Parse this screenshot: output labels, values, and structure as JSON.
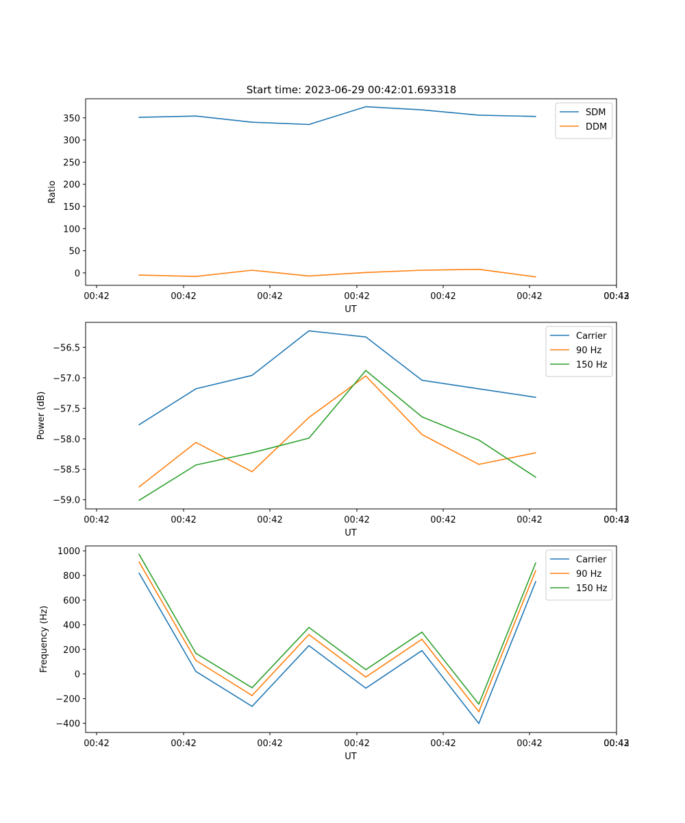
{
  "figure": {
    "title": "Start time: 2023-06-29 00:42:01.693318"
  },
  "chart_data": [
    {
      "type": "line",
      "xlabel": "UT",
      "ylabel": "Ratio",
      "x_tick_labels": [
        "00:42",
        "00:42",
        "00:42",
        "00:42",
        "00:42",
        "00:42",
        "00:42",
        "00:43"
      ],
      "ylim": [
        -28.0,
        393.0
      ],
      "y_ticks": [
        0,
        50,
        100,
        150,
        200,
        250,
        300,
        350
      ],
      "grid": false,
      "legend": "top-right",
      "series": [
        {
          "name": "SDM",
          "color": "#1f77b4",
          "values": [
            351,
            354,
            340,
            335,
            375,
            368,
            356,
            353
          ]
        },
        {
          "name": "DDM",
          "color": "#ff7f0e",
          "values": [
            -5,
            -8,
            6,
            -7,
            1,
            6,
            8,
            -9
          ]
        }
      ]
    },
    {
      "type": "line",
      "xlabel": "UT",
      "ylabel": "Power (dB)",
      "x_tick_labels": [
        "00:42",
        "00:42",
        "00:42",
        "00:42",
        "00:42",
        "00:42",
        "00:42",
        "00:43"
      ],
      "ylim": [
        -59.15,
        -56.09
      ],
      "y_ticks": [
        -59.0,
        -58.5,
        -58.0,
        -57.5,
        -57.0,
        -56.5
      ],
      "grid": false,
      "legend": "top-right",
      "series": [
        {
          "name": "Carrier",
          "color": "#1f77b4",
          "values": [
            -57.77,
            -57.18,
            -56.96,
            -56.23,
            -56.33,
            -57.04,
            -57.18,
            -57.32
          ]
        },
        {
          "name": "90 Hz",
          "color": "#ff7f0e",
          "values": [
            -58.79,
            -58.06,
            -58.54,
            -57.65,
            -56.97,
            -57.93,
            -58.42,
            -58.23
          ]
        },
        {
          "name": "150 Hz",
          "color": "#2ca02c",
          "values": [
            -59.01,
            -58.43,
            -58.23,
            -57.99,
            -56.88,
            -57.64,
            -58.02,
            -58.63
          ]
        }
      ]
    },
    {
      "type": "line",
      "xlabel": "UT",
      "ylabel": "Frequency (Hz)",
      "x_tick_labels": [
        "00:42",
        "00:42",
        "00:42",
        "00:42",
        "00:42",
        "00:42",
        "00:42",
        "00:43"
      ],
      "ylim": [
        -475,
        1040
      ],
      "y_ticks": [
        -400,
        -200,
        0,
        200,
        400,
        600,
        800,
        1000
      ],
      "grid": false,
      "legend": "top-right",
      "series": [
        {
          "name": "Carrier",
          "color": "#1f77b4",
          "values": [
            820,
            20,
            -263,
            230,
            -115,
            190,
            -402,
            750
          ]
        },
        {
          "name": "90 Hz",
          "color": "#ff7f0e",
          "values": [
            910,
            110,
            -175,
            320,
            -25,
            282,
            -307,
            840
          ]
        },
        {
          "name": "150 Hz",
          "color": "#2ca02c",
          "values": [
            972,
            168,
            -112,
            378,
            35,
            340,
            -245,
            902
          ]
        }
      ]
    }
  ]
}
